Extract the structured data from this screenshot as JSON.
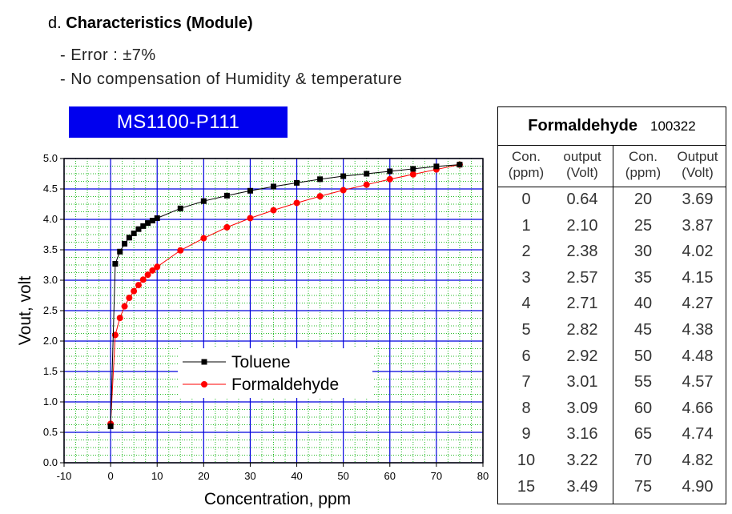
{
  "heading": {
    "prefix": "d.",
    "title": "Characteristics (Module)"
  },
  "bullets": [
    "- Error : ±7%",
    "- No compensation of Humidity & temperature"
  ],
  "model_label": "MS1100-P111",
  "chart_data": {
    "type": "line",
    "xlabel": "Concentration, ppm",
    "ylabel": "Vout, volt",
    "xlim": [
      -10,
      80
    ],
    "ylim": [
      0.0,
      5.0
    ],
    "xticks": [
      -10,
      0,
      10,
      20,
      30,
      40,
      50,
      60,
      70,
      80
    ],
    "yticks": [
      0.0,
      0.5,
      1.0,
      1.5,
      2.0,
      2.5,
      3.0,
      3.5,
      4.0,
      4.5,
      5.0
    ],
    "xtick_labels": [
      "-10",
      "0",
      "10",
      "20",
      "30",
      "40",
      "50",
      "60",
      "70",
      "80"
    ],
    "ytick_labels": [
      "0.0",
      "0.5",
      "1.0",
      "1.5",
      "2.0",
      "2.5",
      "3.0",
      "3.5",
      "4.0",
      "4.5",
      "5.0"
    ],
    "grid": true,
    "legend_position": "center",
    "series": [
      {
        "name": "Toluene",
        "color": "#000000",
        "marker": "square",
        "x": [
          0,
          1,
          2,
          3,
          4,
          5,
          6,
          7,
          8,
          9,
          10,
          15,
          20,
          25,
          30,
          35,
          40,
          45,
          50,
          55,
          60,
          65,
          70,
          75
        ],
        "y": [
          0.6,
          3.27,
          3.47,
          3.6,
          3.7,
          3.77,
          3.84,
          3.89,
          3.94,
          3.98,
          4.02,
          4.18,
          4.3,
          4.39,
          4.47,
          4.54,
          4.6,
          4.66,
          4.71,
          4.75,
          4.79,
          4.83,
          4.87,
          4.9
        ]
      },
      {
        "name": "Formaldehyde",
        "color": "#ff0000",
        "marker": "circle",
        "x": [
          0,
          1,
          2,
          3,
          4,
          5,
          6,
          7,
          8,
          9,
          10,
          15,
          20,
          25,
          30,
          35,
          40,
          45,
          50,
          55,
          60,
          65,
          70,
          75
        ],
        "y": [
          0.64,
          2.1,
          2.38,
          2.57,
          2.71,
          2.82,
          2.92,
          3.01,
          3.09,
          3.16,
          3.22,
          3.49,
          3.69,
          3.87,
          4.02,
          4.15,
          4.27,
          4.38,
          4.48,
          4.57,
          4.66,
          4.74,
          4.82,
          4.9
        ]
      }
    ]
  },
  "table": {
    "title": "Formaldehyde",
    "code": "100322",
    "headers": [
      {
        "l1": "Con.",
        "l2": "(ppm)"
      },
      {
        "l1": "output",
        "l2": "(Volt)"
      },
      {
        "l1": "Con.",
        "l2": "(ppm)"
      },
      {
        "l1": "Output",
        "l2": "(Volt)"
      }
    ],
    "rows": [
      [
        "0",
        "0.64",
        "20",
        "3.69"
      ],
      [
        "1",
        "2.10",
        "25",
        "3.87"
      ],
      [
        "2",
        "2.38",
        "30",
        "4.02"
      ],
      [
        "3",
        "2.57",
        "35",
        "4.15"
      ],
      [
        "4",
        "2.71",
        "40",
        "4.27"
      ],
      [
        "5",
        "2.82",
        "45",
        "4.38"
      ],
      [
        "6",
        "2.92",
        "50",
        "4.48"
      ],
      [
        "7",
        "3.01",
        "55",
        "4.57"
      ],
      [
        "8",
        "3.09",
        "60",
        "4.66"
      ],
      [
        "9",
        "3.16",
        "65",
        "4.74"
      ],
      [
        "10",
        "3.22",
        "70",
        "4.82"
      ],
      [
        "15",
        "3.49",
        "75",
        "4.90"
      ]
    ]
  }
}
